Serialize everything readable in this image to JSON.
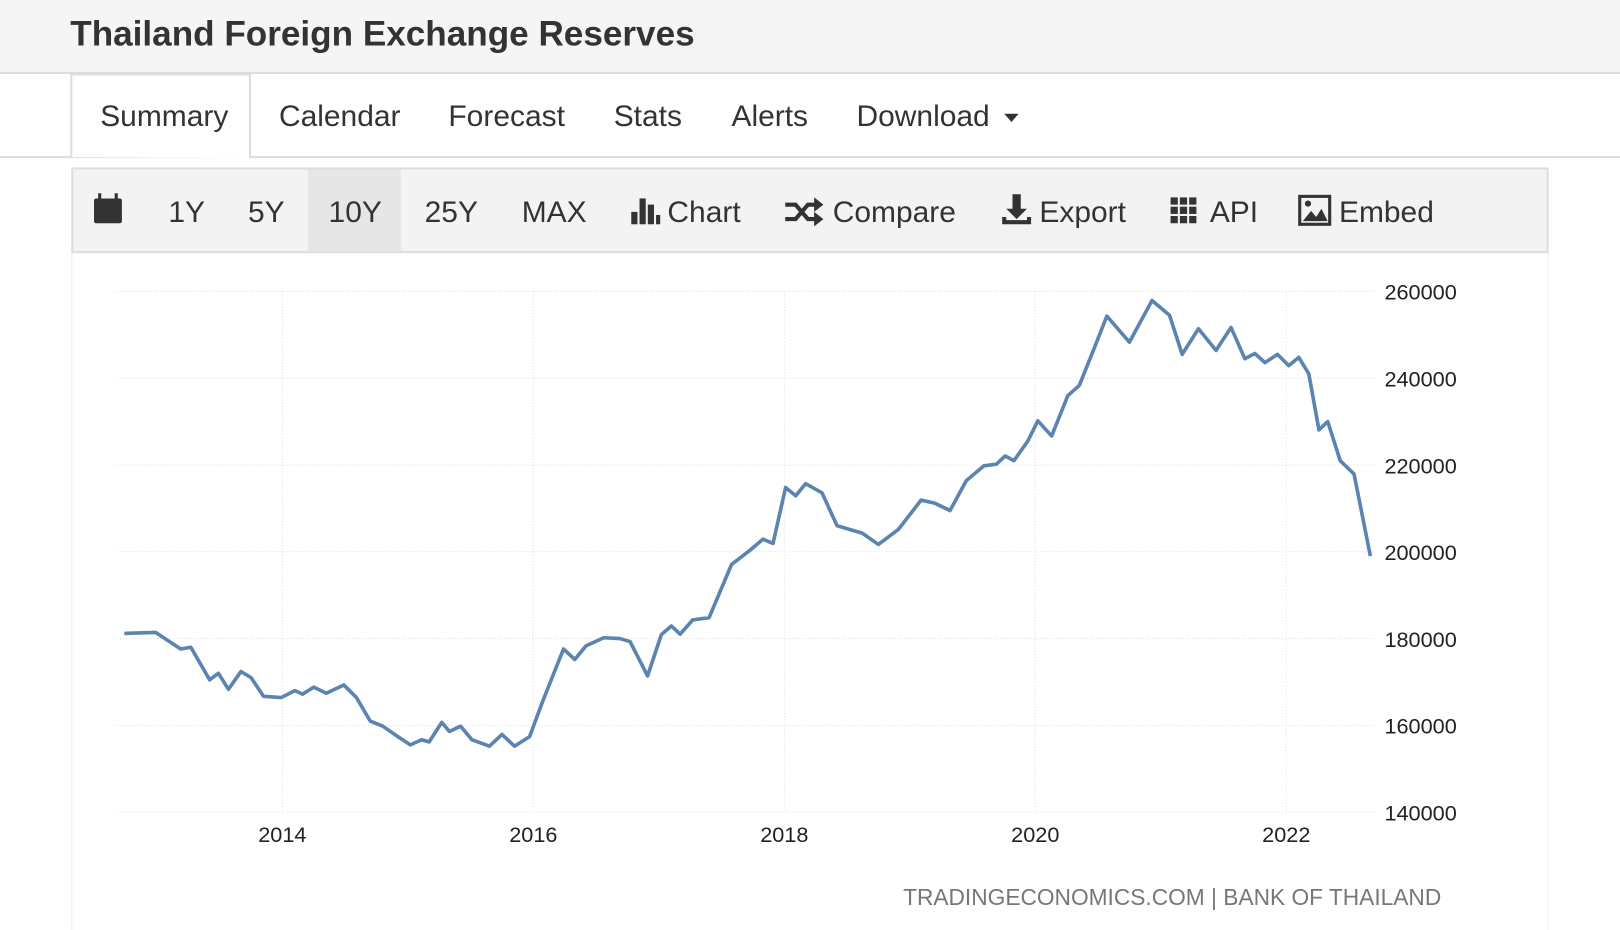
{
  "header": {
    "title": "Thailand Foreign Exchange Reserves"
  },
  "tabs": [
    "Summary",
    "Calendar",
    "Forecast",
    "Stats",
    "Alerts",
    "Download"
  ],
  "toolbar": [
    "1Y",
    "5Y",
    "10Y",
    "25Y",
    "MAX",
    "Chart",
    "Compare",
    "Export",
    "API",
    "Embed"
  ],
  "chart_data": {
    "type": "line",
    "x": [
      2012.74,
      2012.99,
      2013.19,
      2013.27,
      2013.42,
      2013.49,
      2013.57,
      2013.67,
      2013.75,
      2013.85,
      2013.99,
      2014.1,
      2014.16,
      2014.25,
      2014.35,
      2014.49,
      2014.59,
      2014.7,
      2014.8,
      2014.92,
      2015.02,
      2015.11,
      2015.17,
      2015.27,
      2015.33,
      2015.42,
      2015.51,
      2015.65,
      2015.75,
      2015.85,
      2015.97,
      2016.07,
      2016.24,
      2016.33,
      2016.42,
      2016.56,
      2016.69,
      2016.77,
      2016.91,
      2017.02,
      2017.1,
      2017.17,
      2017.27,
      2017.4,
      2017.58,
      2017.72,
      2017.83,
      2017.91,
      2018.01,
      2018.09,
      2018.17,
      2018.3,
      2018.42,
      2018.62,
      2018.75,
      2018.91,
      2019.09,
      2019.2,
      2019.32,
      2019.45,
      2019.59,
      2019.69,
      2019.76,
      2019.83,
      2019.94,
      2020.02,
      2020.13,
      2020.26,
      2020.35,
      2020.46,
      2020.57,
      2020.75,
      2020.93,
      2021.07,
      2021.17,
      2021.3,
      2021.44,
      2021.56,
      2021.67,
      2021.75,
      2021.83,
      2021.93,
      2022.02,
      2022.1,
      2022.18,
      2022.26,
      2022.33,
      2022.43,
      2022.54,
      2022.67
    ],
    "series": [
      {
        "color": "#5b84b1",
        "values": [
          181200,
          181400,
          177600,
          178000,
          170500,
          172000,
          168300,
          172400,
          171000,
          166700,
          166400,
          168000,
          167200,
          168800,
          167400,
          169300,
          166400,
          161000,
          159800,
          157400,
          155500,
          156700,
          156200,
          160700,
          158600,
          159800,
          156700,
          155200,
          157900,
          155200,
          157400,
          165200,
          177600,
          175200,
          178300,
          180200,
          180000,
          179300,
          171400,
          180900,
          182900,
          181000,
          184300,
          184800,
          197100,
          200200,
          202900,
          201900,
          214800,
          212900,
          215700,
          213600,
          206000,
          204300,
          201700,
          205200,
          211900,
          211200,
          209500,
          216400,
          219800,
          220200,
          222100,
          221000,
          225500,
          230200,
          226700,
          236000,
          238300,
          246200,
          254300,
          248300,
          257900,
          254500,
          245500,
          251400,
          246400,
          251700,
          244500,
          245700,
          243600,
          245500,
          242900,
          244800,
          241000,
          228100,
          230000,
          221000,
          217900,
          199000
        ]
      }
    ],
    "xlim": [
      2012.68,
      2022.7
    ],
    "xticks": [
      2014,
      2016,
      2018,
      2020,
      2022
    ],
    "ylim": [
      140000,
      260000
    ],
    "yticks": [
      140000,
      160000,
      180000,
      200000,
      220000,
      240000,
      260000
    ],
    "grid": true,
    "source": "TRADINGECONOMICS.COM | BANK OF THAILAND"
  }
}
